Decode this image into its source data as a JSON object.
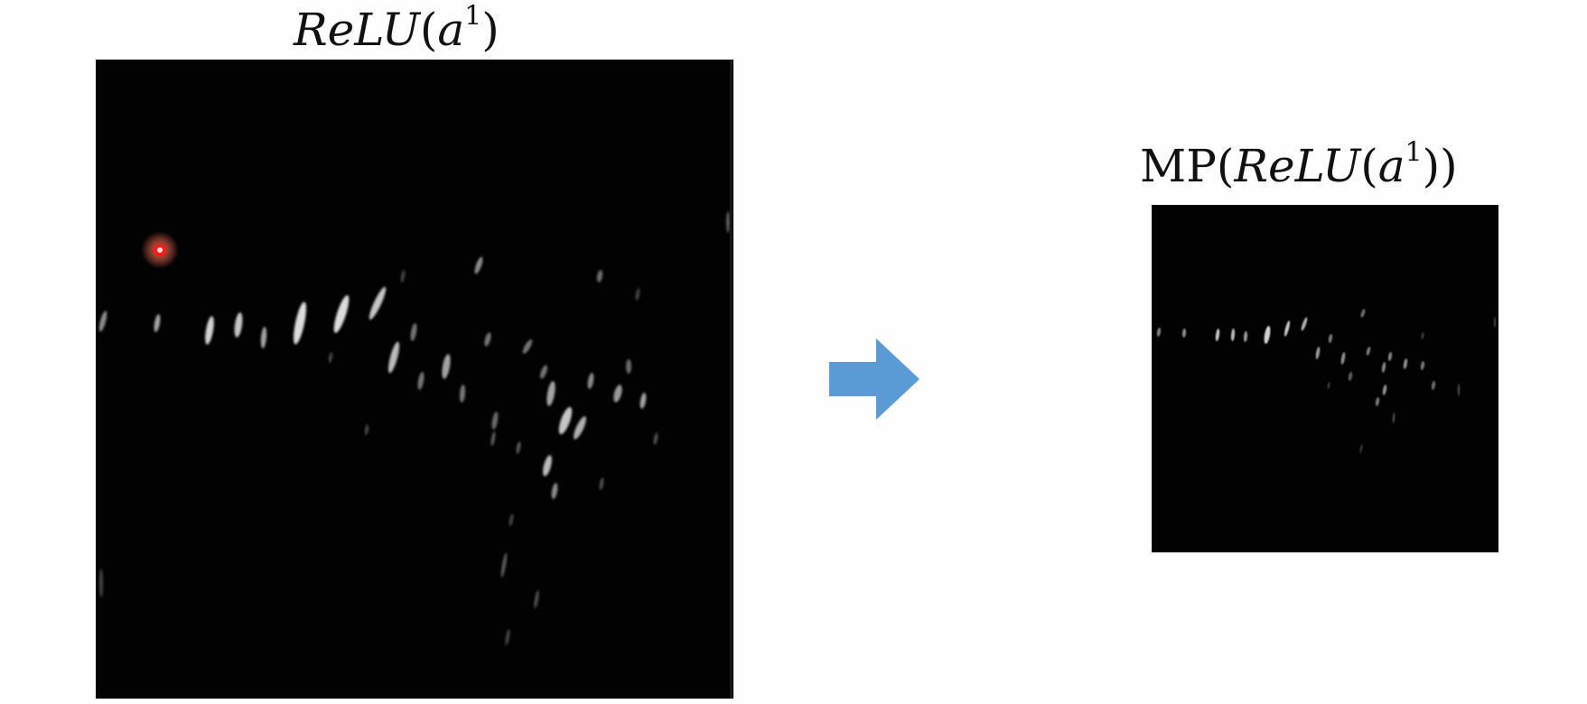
{
  "left_panel": {
    "title_fn": "ReLU",
    "title_var": "a",
    "title_sup": "1"
  },
  "right_panel": {
    "title_prefix": "MP",
    "title_fn": "ReLU",
    "title_var": "a",
    "title_sup": "1"
  },
  "colors": {
    "background": "#fefefe",
    "panel": "#020202",
    "arrow": "#5b9bd5",
    "cursor": "#ff2020"
  }
}
